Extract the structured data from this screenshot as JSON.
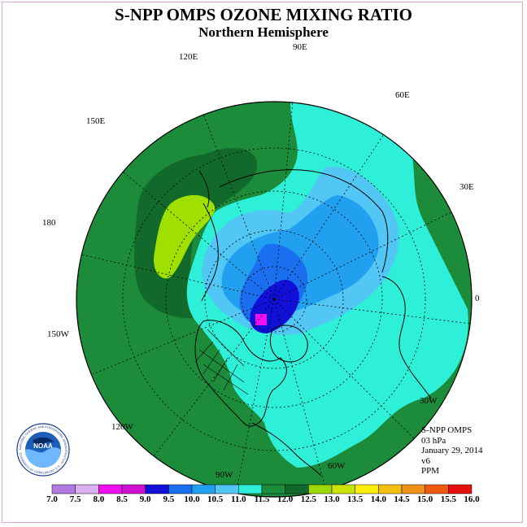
{
  "title": "S-NPP OMPS OZONE MIXING RATIO",
  "subtitle": "Northern Hemisphere",
  "longitude_labels": {
    "lon_90e": "90E",
    "lon_120e": "120E",
    "lon_60e": "60E",
    "lon_150e": "150E",
    "lon_30e": "30E",
    "lon_180": "180",
    "lon_0": "0",
    "lon_150w": "150W",
    "lon_30w": "30W",
    "lon_120w": "120W",
    "lon_60w": "60W",
    "lon_90w": "90W"
  },
  "info": {
    "instrument": "S-NPP OMPS",
    "level": "03 hPa",
    "date": "January 29, 2014",
    "version": "v6",
    "units": "PPM"
  },
  "logo": {
    "text": "NOAA",
    "ring_text": "NATIONAL OCEANIC AND ATMOSPHERIC ADMINISTRATION · U.S. DEPARTMENT OF COMMERCE"
  },
  "colorbar": {
    "tick_labels": [
      "7.0",
      "7.5",
      "8.0",
      "8.5",
      "9.0",
      "9.5",
      "10.0",
      "10.5",
      "11.0",
      "11.5",
      "12.0",
      "12.5",
      "13.0",
      "13.5",
      "14.0",
      "14.5",
      "15.0",
      "15.5",
      "16.0"
    ],
    "colors": [
      "#b07ae0",
      "#dab0ee",
      "#ee10ee",
      "#d010d0",
      "#1010d8",
      "#1a6ef0",
      "#22a0f0",
      "#52c6f4",
      "#2ef0d8",
      "#1c8c3a",
      "#116a2c",
      "#9bd800",
      "#c8e400",
      "#ffee00",
      "#f4c010",
      "#f09018",
      "#f05a10",
      "#e61010",
      "#8b5a3c"
    ]
  },
  "map_colors": {
    "ocean_green": "#1c8c3a",
    "dark_green": "#116a2c",
    "lime": "#a0e000",
    "cyan": "#2ef0d8",
    "light_blue": "#52c6f4",
    "mid_blue": "#22a0f0",
    "blue": "#1a6ef0",
    "deep_blue": "#1010d8",
    "magenta": "#ee10ee",
    "land_outline": "#000000"
  }
}
